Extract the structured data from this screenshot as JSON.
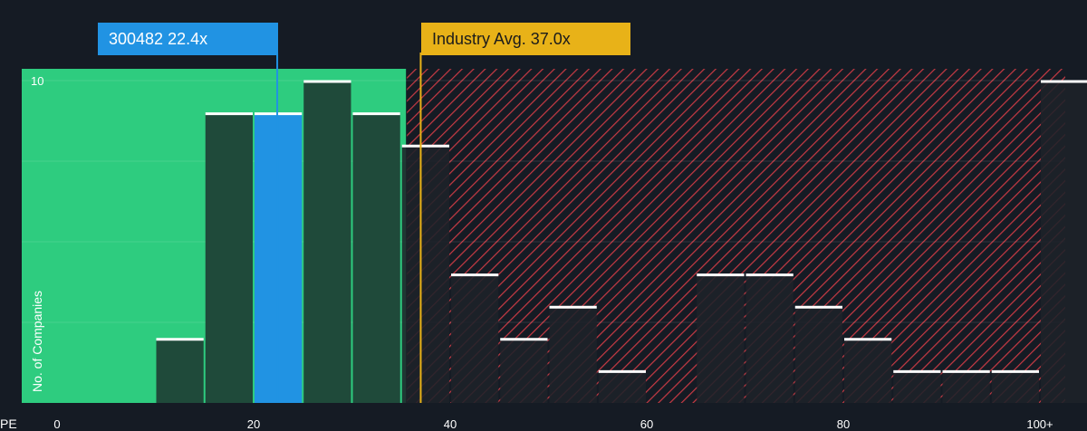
{
  "colors": {
    "background": "#151b24",
    "fair_zone": "#2ecc7f",
    "bar_in_zone": "#1f4a3a",
    "bar_out_zone": "#1e2229",
    "highlight": "#2193e3",
    "industry": "#e8b218",
    "hatch": "#c83a44",
    "bar_top": "#ffffff"
  },
  "company_callout": {
    "label": "300482 22.4x",
    "value": 22.4
  },
  "industry_callout": {
    "label": "Industry Avg. 37.0x",
    "value": 37.0
  },
  "chart_data": {
    "type": "bar",
    "title": "",
    "xlabel": "PE",
    "ylabel": "No. of Companies",
    "xlim": [
      0,
      102.5
    ],
    "ylim": [
      0,
      10
    ],
    "x_ticks": [
      {
        "value": 0,
        "label": "0"
      },
      {
        "value": 20,
        "label": "20"
      },
      {
        "value": 40,
        "label": "40"
      },
      {
        "value": 60,
        "label": "60"
      },
      {
        "value": 80,
        "label": "80"
      },
      {
        "value": 100,
        "label": "100+"
      }
    ],
    "y_ticks": [
      {
        "value": 10,
        "label": "10"
      }
    ],
    "bin_width": 5,
    "bins": [
      {
        "start": 10,
        "count": 2
      },
      {
        "start": 15,
        "count": 9
      },
      {
        "start": 20,
        "count": 9,
        "highlight": true
      },
      {
        "start": 25,
        "count": 10
      },
      {
        "start": 30,
        "count": 9
      },
      {
        "start": 35,
        "count": 8
      },
      {
        "start": 40,
        "count": 4
      },
      {
        "start": 45,
        "count": 2
      },
      {
        "start": 50,
        "count": 3
      },
      {
        "start": 55,
        "count": 1
      },
      {
        "start": 65,
        "count": 4
      },
      {
        "start": 70,
        "count": 4
      },
      {
        "start": 75,
        "count": 3
      },
      {
        "start": 80,
        "count": 2
      },
      {
        "start": 85,
        "count": 1
      },
      {
        "start": 90,
        "count": 1
      },
      {
        "start": 95,
        "count": 1
      },
      {
        "start": 100,
        "count": 10
      }
    ],
    "fair_zone_end": 35.5,
    "company_value": 22.4,
    "industry_avg": 37.0
  }
}
